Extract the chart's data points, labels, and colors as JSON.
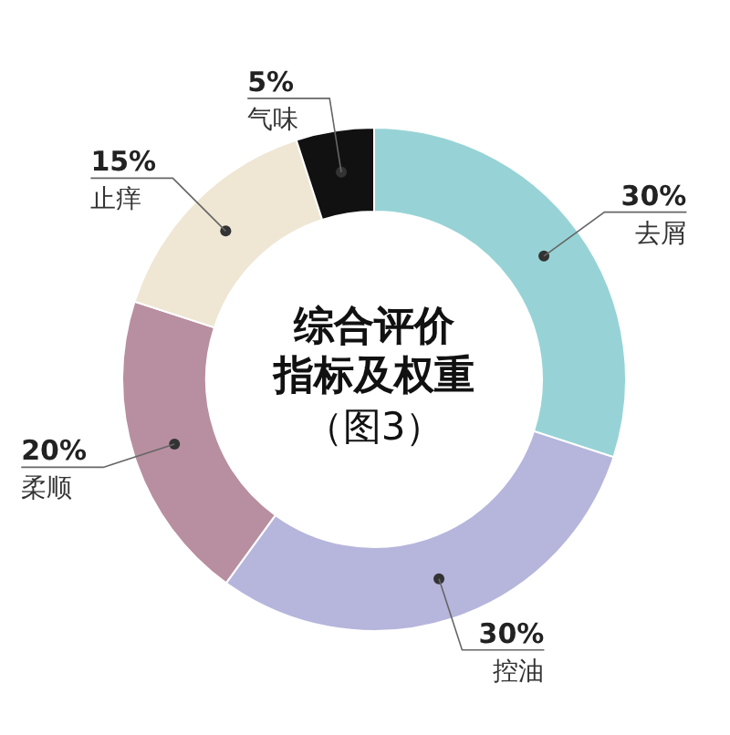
{
  "chart_data": {
    "type": "donut",
    "title": "综合评价指标及权重",
    "subtitle": "（图3）",
    "categories": [
      "去屑",
      "控油",
      "柔顺",
      "止痒",
      "气味"
    ],
    "values": [
      30,
      30,
      20,
      15,
      5
    ],
    "value_labels": [
      "30%",
      "30%",
      "20%",
      "15%",
      "5%"
    ],
    "colors": [
      "#97d3d6",
      "#b6b5dc",
      "#b88fa0",
      "#efe6d4",
      "#111111"
    ]
  }
}
